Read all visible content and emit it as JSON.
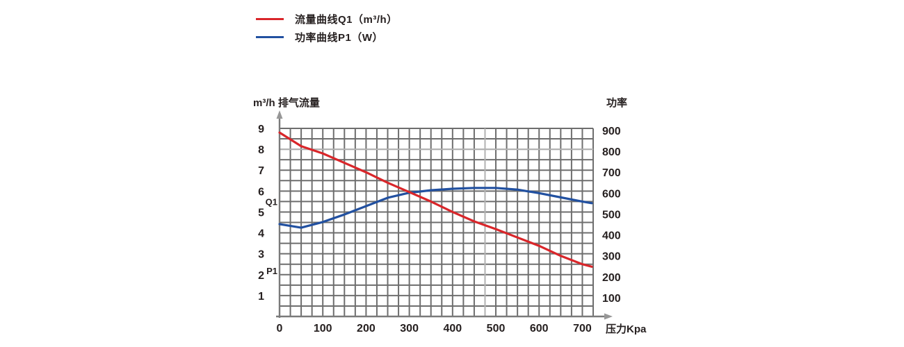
{
  "legend": {
    "items": [
      {
        "label": "流量曲线Q1（m³/h）",
        "color": "#d9262a"
      },
      {
        "label": "功率曲线P1（W）",
        "color": "#2150a0"
      }
    ]
  },
  "chart_data": {
    "type": "line",
    "title": "",
    "grid": true,
    "legend_position": "top-left",
    "x_axis": {
      "label": "压力Kpa",
      "min": 0,
      "max": 725,
      "major_ticks": [
        0,
        100,
        200,
        300,
        400,
        500,
        600,
        700
      ],
      "minor_step": 25
    },
    "y_axis_left": {
      "label": "m³/h 排气流量",
      "min": 0,
      "max": 9,
      "ticks": [
        9,
        8,
        7,
        6,
        5,
        4,
        3,
        2,
        1
      ],
      "minor_step": 0.5
    },
    "y_axis_right": {
      "label": "功率",
      "min": 0,
      "max": 900,
      "ticks": [
        900,
        800,
        700,
        600,
        500,
        400,
        300,
        200,
        100
      ]
    },
    "series": [
      {
        "name": "流量曲线Q1（m³/h）",
        "short_label": "Q1",
        "axis": "left",
        "unit": "m³/h",
        "color": "#d9262a",
        "points": [
          [
            0,
            8.8
          ],
          [
            50,
            8.15
          ],
          [
            100,
            7.8
          ],
          [
            150,
            7.35
          ],
          [
            200,
            6.9
          ],
          [
            250,
            6.4
          ],
          [
            300,
            5.95
          ],
          [
            350,
            5.5
          ],
          [
            400,
            5.0
          ],
          [
            450,
            4.55
          ],
          [
            500,
            4.18
          ],
          [
            550,
            3.78
          ],
          [
            600,
            3.38
          ],
          [
            650,
            2.9
          ],
          [
            700,
            2.5
          ],
          [
            722,
            2.38
          ]
        ]
      },
      {
        "name": "功率曲线P1（W）",
        "short_label": "P1",
        "axis": "right",
        "unit": "W",
        "color": "#2150a0",
        "points": [
          [
            0,
            442
          ],
          [
            50,
            425
          ],
          [
            100,
            452
          ],
          [
            150,
            488
          ],
          [
            200,
            528
          ],
          [
            250,
            568
          ],
          [
            300,
            592
          ],
          [
            350,
            604
          ],
          [
            400,
            611
          ],
          [
            450,
            615
          ],
          [
            500,
            615
          ],
          [
            550,
            607
          ],
          [
            600,
            590
          ],
          [
            650,
            570
          ],
          [
            700,
            550
          ],
          [
            722,
            542
          ]
        ]
      }
    ],
    "annotations": [
      {
        "text": "Q1",
        "y_left_value": 5.5
      },
      {
        "text": "P1",
        "y_left_value": 2.2
      }
    ]
  }
}
